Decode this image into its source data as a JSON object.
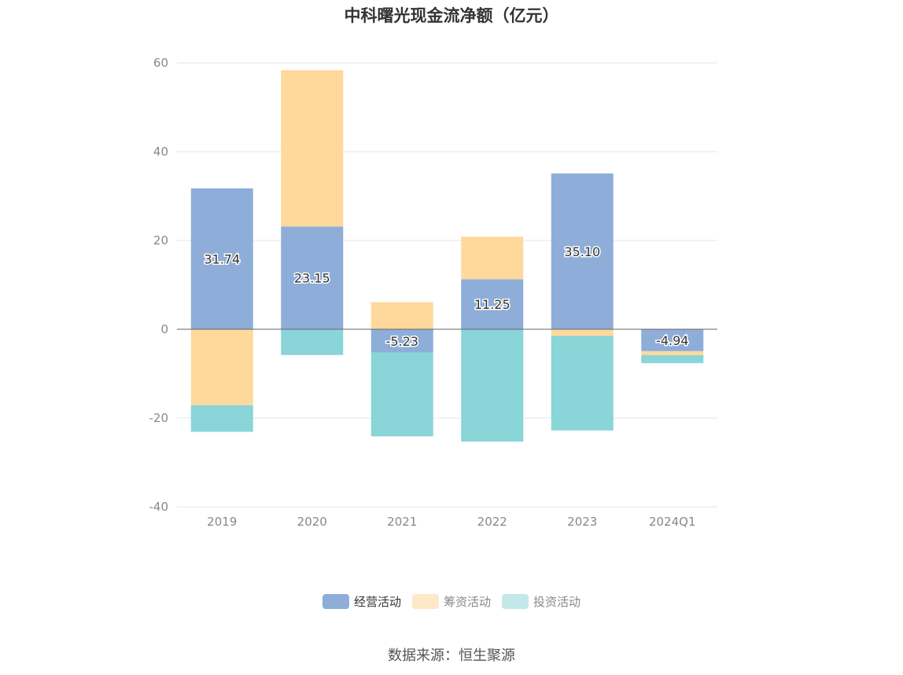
{
  "title": "中科曙光现金流净额（亿元）",
  "source": "数据来源：恒生聚源",
  "colors": {
    "operating": "#8eaed9",
    "financing": "#fed99b",
    "investing": "#89d5d8",
    "operating_legend": "#8eaed9",
    "financing_legend": "#fde8c8",
    "investing_legend": "#c2e8ea",
    "grid": "#e3e6ec",
    "zero": "#666666"
  },
  "legend": [
    {
      "key": "operating",
      "label": "经营活动"
    },
    {
      "key": "financing",
      "label": "筹资活动"
    },
    {
      "key": "investing",
      "label": "投资活动"
    }
  ],
  "chart_data": {
    "type": "bar",
    "stacked": true,
    "title": "中科曙光现金流净额（亿元）",
    "categories": [
      "2019",
      "2020",
      "2021",
      "2022",
      "2023",
      "2024Q1"
    ],
    "ylim": [
      -40,
      60
    ],
    "yticks": [
      60,
      40,
      20,
      0,
      -20,
      -40
    ],
    "series": [
      {
        "name": "经营活动",
        "key": "operating",
        "values": [
          31.74,
          23.15,
          -5.23,
          11.25,
          35.1,
          -4.94
        ],
        "labels": [
          "31.74",
          "23.15",
          "-5.23",
          "11.25",
          "35.10",
          "-4.94"
        ]
      },
      {
        "name": "筹资活动",
        "key": "financing",
        "values": [
          -17.1,
          35.2,
          6.1,
          9.6,
          -1.5,
          -0.9
        ]
      },
      {
        "name": "投资活动",
        "key": "investing",
        "values": [
          -6.0,
          -5.8,
          -18.9,
          -25.3,
          -21.3,
          -1.8
        ]
      }
    ]
  }
}
